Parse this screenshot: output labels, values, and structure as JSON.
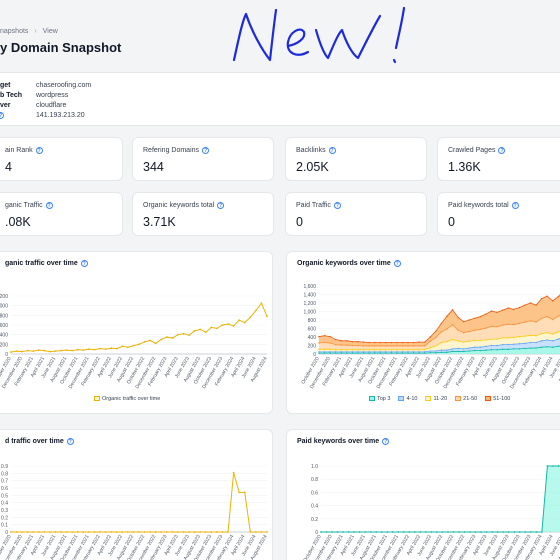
{
  "breadcrumb": {
    "parent": "napshots",
    "current": "View"
  },
  "page_title": "y Domain Snapshot",
  "info": {
    "rows": [
      {
        "key": "get",
        "value": "chaseroofing.com"
      },
      {
        "key": "b Tech",
        "value": "wordpress"
      },
      {
        "key": "ver",
        "value": "cloudflare"
      },
      {
        "key": "",
        "value": "141.193.213.20"
      }
    ]
  },
  "stats": [
    {
      "label": "ain Rank",
      "value": "4"
    },
    {
      "label": "Refering Domains",
      "value": "344"
    },
    {
      "label": "Backlinks",
      "value": "2.05K"
    },
    {
      "label": "Crawled Pages",
      "value": "1.36K"
    },
    {
      "label": "ganic Traffic",
      "value": ".08K"
    },
    {
      "label": "Organic keywords total",
      "value": "3.71K"
    },
    {
      "label": "Paid Traffic",
      "value": "0"
    },
    {
      "label": "Paid keywords total",
      "value": "0"
    }
  ],
  "colors": {
    "accent": "#3b82f6",
    "yellow": "#eab308",
    "top3": "#14b8a6",
    "k4_10": "#60a5fa",
    "k11_20": "#fde68a",
    "k21_50": "#fdba74",
    "k51_100": "#f97316"
  },
  "x_labels": [
    "October 2020",
    "November 2020",
    "December 2020",
    "January 2021",
    "February 2021",
    "March 2021",
    "April 2021",
    "May 2021",
    "June 2021",
    "July 2021",
    "August 2021",
    "September 2021",
    "October 2021",
    "November 2021",
    "December 2021",
    "January 2022",
    "February 2022",
    "March 2022",
    "April 2022",
    "May 2022",
    "June 2022",
    "July 2022",
    "August 2022",
    "September 2022",
    "October 2022",
    "November 2022",
    "December 2022",
    "January 2023",
    "February 2023",
    "March 2023",
    "April 2023",
    "May 2023",
    "June 2023",
    "July 2023",
    "August 2023",
    "September 2023",
    "October 2023",
    "November 2023",
    "December 2023",
    "January 2024",
    "February 2024",
    "March 2024",
    "April 2024",
    "May 2024",
    "June 2024",
    "July 2024",
    "August 2024"
  ],
  "chart_data": [
    {
      "type": "line",
      "title": "ganic traffic over time",
      "ylim": [
        0,
        1200
      ],
      "yticks": [
        "0",
        "200",
        "400",
        "600",
        "800",
        "1,000",
        "1,200"
      ],
      "series": [
        {
          "name": "Organic traffic over time",
          "color": "#eab308",
          "values": [
            40,
            60,
            50,
            70,
            60,
            80,
            70,
            50,
            60,
            70,
            80,
            70,
            90,
            80,
            100,
            90,
            110,
            100,
            120,
            110,
            160,
            140,
            170,
            200,
            250,
            280,
            220,
            300,
            350,
            330,
            400,
            420,
            390,
            480,
            510,
            450,
            550,
            530,
            600,
            620,
            580,
            700,
            650,
            760,
            900,
            1050,
            780
          ]
        }
      ]
    },
    {
      "type": "area",
      "title": "Organic keywords over time",
      "ylim": [
        0,
        1600
      ],
      "yticks": [
        "0",
        "200",
        "400",
        "600",
        "800",
        "1,000",
        "1,200",
        "1,400",
        "1,600"
      ],
      "series": [
        {
          "name": "Top 3",
          "values": [
            20,
            20,
            20,
            20,
            20,
            20,
            20,
            20,
            20,
            20,
            20,
            20,
            20,
            20,
            20,
            20,
            20,
            20,
            20,
            20,
            30,
            30,
            40,
            40,
            60,
            60,
            60,
            70,
            80,
            80,
            90,
            100,
            100,
            110,
            110,
            120,
            120,
            130,
            140,
            140,
            160,
            170,
            160,
            180,
            200,
            220,
            230
          ]
        },
        {
          "name": "4-10",
          "values": [
            30,
            30,
            30,
            30,
            30,
            30,
            30,
            30,
            30,
            30,
            30,
            30,
            30,
            30,
            30,
            30,
            30,
            30,
            30,
            30,
            40,
            40,
            50,
            50,
            60,
            70,
            60,
            70,
            80,
            80,
            90,
            100,
            100,
            110,
            110,
            110,
            120,
            120,
            130,
            130,
            150,
            160,
            150,
            170,
            200,
            210,
            210
          ]
        },
        {
          "name": "11-20",
          "values": [
            60,
            60,
            60,
            50,
            50,
            50,
            50,
            50,
            50,
            50,
            50,
            50,
            50,
            50,
            50,
            50,
            50,
            50,
            50,
            50,
            80,
            120,
            180,
            200,
            220,
            180,
            160,
            160,
            160,
            160,
            150,
            150,
            150,
            160,
            160,
            160,
            170,
            170,
            170,
            160,
            170,
            170,
            160,
            170,
            190,
            200,
            200
          ]
        },
        {
          "name": "21-50",
          "values": [
            150,
            160,
            150,
            120,
            110,
            110,
            100,
            100,
            90,
            90,
            90,
            90,
            90,
            90,
            90,
            90,
            90,
            90,
            90,
            90,
            150,
            200,
            250,
            300,
            350,
            250,
            220,
            230,
            240,
            260,
            280,
            300,
            290,
            300,
            320,
            300,
            310,
            330,
            340,
            320,
            360,
            380,
            340,
            370,
            400,
            420,
            420
          ]
        },
        {
          "name": "51-100",
          "values": [
            150,
            160,
            150,
            120,
            100,
            100,
            90,
            90,
            90,
            80,
            80,
            80,
            80,
            80,
            80,
            80,
            80,
            80,
            90,
            90,
            100,
            150,
            200,
            300,
            350,
            300,
            260,
            270,
            280,
            300,
            330,
            360,
            340,
            350,
            380,
            360,
            370,
            400,
            420,
            400,
            460,
            480,
            440,
            460,
            500,
            520,
            520
          ]
        }
      ]
    },
    {
      "type": "line",
      "title": "d traffic over time",
      "ylim": [
        0,
        1.0
      ],
      "yticks": [
        "0",
        "0.1",
        "0.2",
        "0.3",
        "0.4",
        "0.5",
        "0.6",
        "0.7",
        "0.8",
        "0.9"
      ],
      "series": [
        {
          "name": "Paid traffic over time",
          "color": "#eab308",
          "values": [
            0,
            0,
            0,
            0,
            0,
            0,
            0,
            0,
            0,
            0,
            0,
            0,
            0,
            0,
            0,
            0,
            0,
            0,
            0,
            0,
            0,
            0,
            0,
            0,
            0,
            0,
            0,
            0,
            0,
            0,
            0,
            0,
            0,
            0,
            0,
            0,
            0,
            0,
            0,
            0,
            0.9,
            0.6,
            0.6,
            0,
            0,
            0,
            0
          ]
        }
      ]
    },
    {
      "type": "area",
      "title": "Paid keywords over time",
      "ylim": [
        0,
        1.0
      ],
      "yticks": [
        "0",
        "0.2",
        "0.4",
        "0.6",
        "0.8",
        "1.0"
      ],
      "series": [
        {
          "name": "Paid keywords",
          "color": "#14b8a6",
          "values": [
            0,
            0,
            0,
            0,
            0,
            0,
            0,
            0,
            0,
            0,
            0,
            0,
            0,
            0,
            0,
            0,
            0,
            0,
            0,
            0,
            0,
            0,
            0,
            0,
            0,
            0,
            0,
            0,
            0,
            0,
            0,
            0,
            0,
            0,
            0,
            0,
            0,
            0,
            0,
            0,
            0,
            1,
            1,
            1,
            1,
            0,
            0
          ]
        }
      ]
    }
  ],
  "legend_keywords": [
    "Top 3",
    "4-10",
    "11-20",
    "21-50",
    "51-100"
  ],
  "legend_traffic": "Organic traffic over time"
}
